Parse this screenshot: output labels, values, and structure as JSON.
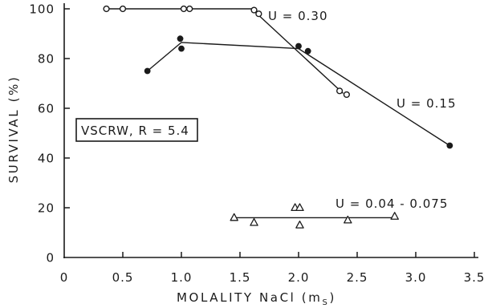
{
  "chart_data": {
    "type": "scatter",
    "xlabel": {
      "text": "MOLALITY NaCl (m",
      "subscript": "S",
      "suffix": ")"
    },
    "ylabel": "SURVIVAL (%)",
    "xlim": [
      0,
      3.5
    ],
    "ylim": [
      0,
      100
    ],
    "xticks": [
      "0",
      "0.5",
      "1.0",
      "1.5",
      "2.0",
      "2.5",
      "3.0",
      "3.5"
    ],
    "yticks": [
      "0",
      "20",
      "40",
      "60",
      "80",
      "100"
    ],
    "grid": false,
    "colors": {
      "ink": "#1a1a1a",
      "background": "#ffffff"
    },
    "series": [
      {
        "name": "U = 0.30",
        "marker": "open-circle",
        "points": [
          [
            0.36,
            100
          ],
          [
            0.5,
            100
          ],
          [
            1.02,
            100
          ],
          [
            1.07,
            100
          ],
          [
            1.62,
            99.5
          ],
          [
            1.66,
            98
          ],
          [
            2.35,
            67
          ],
          [
            2.41,
            65.5
          ]
        ],
        "line": [
          [
            0.36,
            100
          ],
          [
            1.6,
            100
          ],
          [
            2.38,
            66
          ]
        ]
      },
      {
        "name": "U = 0.15",
        "marker": "filled-circle",
        "points": [
          [
            0.71,
            75
          ],
          [
            0.99,
            88
          ],
          [
            1.0,
            84
          ],
          [
            2.0,
            85
          ],
          [
            2.08,
            83
          ],
          [
            3.29,
            45
          ]
        ],
        "line": [
          [
            0.71,
            75
          ],
          [
            1.0,
            86.5
          ],
          [
            2.0,
            84
          ],
          [
            3.29,
            45
          ]
        ]
      },
      {
        "name": "U = 0.04 - 0.075",
        "marker": "open-triangle",
        "points": [
          [
            1.45,
            16
          ],
          [
            1.62,
            14
          ],
          [
            1.97,
            20
          ],
          [
            2.01,
            20
          ],
          [
            2.01,
            13
          ],
          [
            2.42,
            15
          ],
          [
            2.82,
            16.5
          ]
        ],
        "line": [
          [
            1.45,
            16
          ],
          [
            2.82,
            16
          ]
        ]
      }
    ],
    "annotations": [
      {
        "text": "VSCRW, R = 5.4",
        "boxed": true
      }
    ]
  }
}
